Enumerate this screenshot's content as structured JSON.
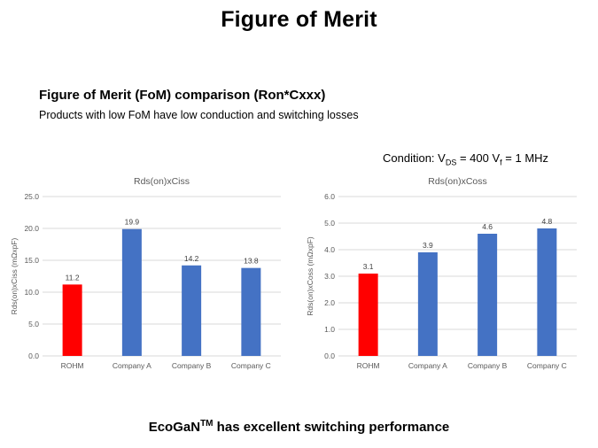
{
  "slide_title": "Figure of Merit",
  "heading": "Figure of Merit (FoM) comparison (Ron*Cxxx)",
  "subheading": "Products with low FoM have low conduction and switching losses",
  "condition": {
    "prefix": "Condition: V",
    "sub1": "DS",
    "mid": " = 400 V",
    "sub2": "f",
    "suffix": " = 1 MHz"
  },
  "footer": {
    "brand": "EcoGaN",
    "sup": "TM",
    "text": " has excellent switching performance"
  },
  "colors": {
    "highlight": "#ff0000",
    "bar": "#4472c4",
    "grid": "#d9d9d9",
    "axis_text": "#595959"
  },
  "chart_data": [
    {
      "type": "bar",
      "title": "Rds(on)xCiss",
      "xlabel": "",
      "ylabel": "Rds(on)xCiss (mΩxpF)",
      "categories": [
        "ROHM",
        "Company A",
        "Company B",
        "Company C"
      ],
      "values": [
        11.2,
        19.9,
        14.2,
        13.8
      ],
      "bar_colors": [
        "#ff0000",
        "#4472c4",
        "#4472c4",
        "#4472c4"
      ],
      "ylim": [
        0,
        25
      ],
      "yticks": [
        "0.0",
        "5.0",
        "10.0",
        "15.0",
        "20.0",
        "25.0"
      ],
      "data_labels": [
        "11.2",
        "19.9",
        "14.2",
        "13.8"
      ],
      "grid": true,
      "legend": "none"
    },
    {
      "type": "bar",
      "title": "Rds(on)xCoss",
      "xlabel": "",
      "ylabel": "Rds(on)xCoss (mΩxpF)",
      "categories": [
        "ROHM",
        "Company A",
        "Company B",
        "Company C"
      ],
      "values": [
        3.1,
        3.9,
        4.6,
        4.8
      ],
      "bar_colors": [
        "#ff0000",
        "#4472c4",
        "#4472c4",
        "#4472c4"
      ],
      "ylim": [
        0,
        6
      ],
      "yticks": [
        "0.0",
        "1.0",
        "2.0",
        "3.0",
        "4.0",
        "5.0",
        "6.0"
      ],
      "data_labels": [
        "3.1",
        "3.9",
        "4.6",
        "4.8"
      ],
      "grid": true,
      "legend": "none"
    }
  ]
}
